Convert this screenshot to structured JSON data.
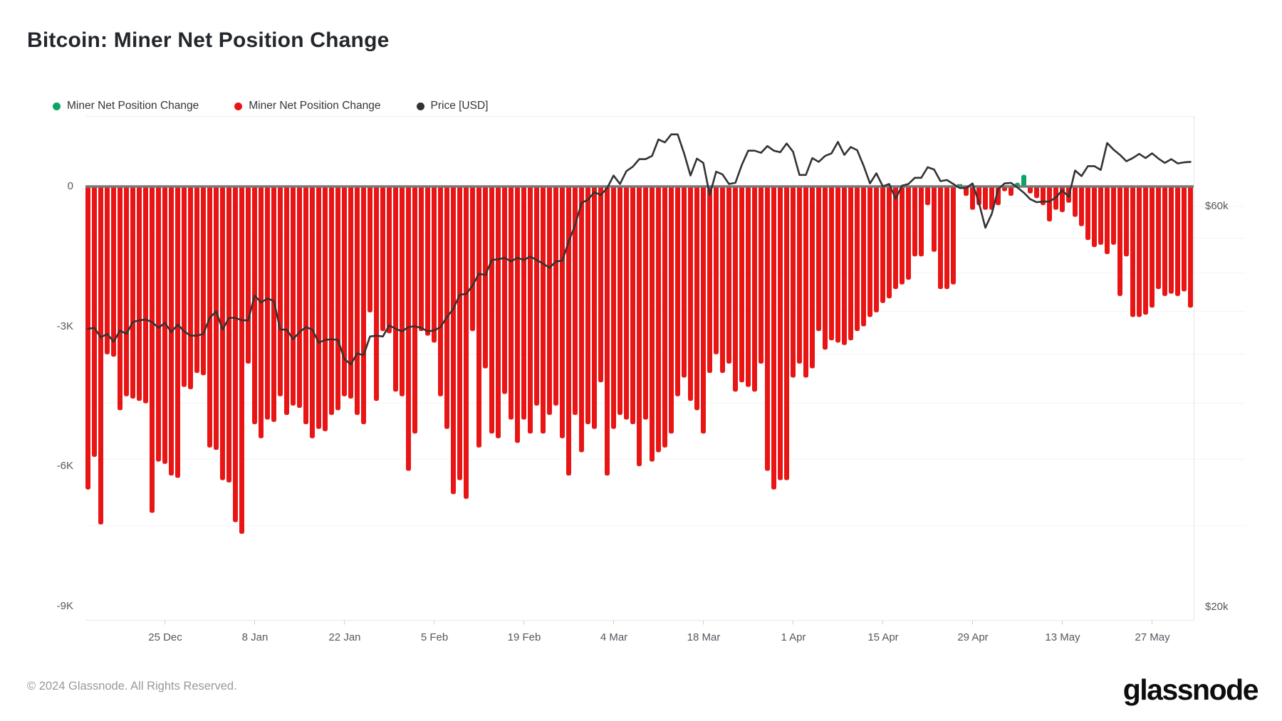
{
  "header": {
    "title": "Bitcoin: Miner Net Position Change"
  },
  "legend": [
    {
      "label": "Miner Net Position Change",
      "color": "#0AA564"
    },
    {
      "label": "Miner Net Position Change",
      "color": "#E91515"
    },
    {
      "label": "Price [USD]",
      "color": "#333333"
    }
  ],
  "axes": {
    "left_ticks": [
      "0",
      "-3K",
      "-6K",
      "-9K"
    ],
    "left_tick_values_k": [
      0,
      -3,
      -6,
      -9
    ],
    "right_ticks": [
      "$60k",
      "$20k"
    ],
    "right_tick_values_usd_k": [
      60,
      20
    ],
    "x_ticks": [
      "25 Dec",
      "8 Jan",
      "22 Jan",
      "5 Feb",
      "19 Feb",
      "4 Mar",
      "18 Mar",
      "1 Apr",
      "15 Apr",
      "29 Apr",
      "13 May",
      "27 May"
    ],
    "x_tick_day_indices": [
      12,
      26,
      40,
      54,
      68,
      82,
      96,
      110,
      124,
      138,
      152,
      166
    ]
  },
  "footer": {
    "copyright": "© 2024 Glassnode. All Rights Reserved.",
    "brand": "glassnode"
  },
  "chart_data": {
    "type": "bar+line",
    "title": "Bitcoin: Miner Net Position Change",
    "cadence": "daily",
    "x_start_date": "2023-12-13",
    "x_end_date": "2024-06-02",
    "x_tick_labels": [
      "25 Dec",
      "8 Jan",
      "22 Jan",
      "5 Feb",
      "19 Feb",
      "4 Mar",
      "18 Mar",
      "1 Apr",
      "15 Apr",
      "29 Apr",
      "13 May",
      "27 May"
    ],
    "x_tick_day_indices": [
      12,
      26,
      40,
      54,
      68,
      82,
      96,
      110,
      124,
      138,
      152,
      166
    ],
    "bar_series_name": "Miner Net Position Change",
    "bar_unit": "K BTC",
    "ylim_k": [
      -9.6,
      0.6
    ],
    "left_axis_ticks_k": [
      0,
      -3,
      -6,
      -9
    ],
    "bar_values_thousands": [
      -6.5,
      -5.8,
      -7.25,
      -3.6,
      -3.65,
      -4.8,
      -4.5,
      -4.55,
      -4.6,
      -4.65,
      -7.0,
      -5.9,
      -5.95,
      -6.2,
      -6.25,
      -4.3,
      -4.35,
      -4.0,
      -4.05,
      -5.6,
      -5.65,
      -6.3,
      -6.35,
      -7.2,
      -7.45,
      -3.8,
      -5.1,
      -5.4,
      -5.0,
      -5.05,
      -4.5,
      -4.9,
      -4.7,
      -4.75,
      -5.1,
      -5.4,
      -5.2,
      -5.25,
      -4.9,
      -4.8,
      -4.5,
      -4.55,
      -4.9,
      -5.1,
      -2.7,
      -4.6,
      -3.1,
      -3.15,
      -4.4,
      -4.5,
      -6.1,
      -5.3,
      -3.1,
      -3.2,
      -3.35,
      -4.5,
      -5.2,
      -6.6,
      -6.3,
      -6.7,
      -3.1,
      -5.6,
      -3.9,
      -5.3,
      -5.4,
      -4.45,
      -5.0,
      -5.5,
      -5.0,
      -5.3,
      -4.7,
      -5.3,
      -4.9,
      -4.7,
      -5.4,
      -6.2,
      -4.9,
      -5.7,
      -5.1,
      -5.2,
      -4.2,
      -6.2,
      -5.2,
      -4.9,
      -5.0,
      -5.1,
      -6.0,
      -5.0,
      -5.9,
      -5.7,
      -5.6,
      -5.3,
      -4.5,
      -4.1,
      -4.6,
      -4.8,
      -5.3,
      -4.0,
      -3.6,
      -4.0,
      -3.8,
      -4.4,
      -4.2,
      -4.3,
      -4.4,
      -3.8,
      -6.1,
      -6.5,
      -6.3,
      -6.3,
      -4.1,
      -3.8,
      -4.1,
      -3.9,
      -3.1,
      -3.5,
      -3.3,
      -3.35,
      -3.4,
      -3.3,
      -3.1,
      -3.0,
      -2.8,
      -2.7,
      -2.5,
      -2.4,
      -2.2,
      -2.1,
      -2.0,
      -1.5,
      -1.5,
      -0.4,
      -1.4,
      -2.2,
      -2.2,
      -2.1,
      0.05,
      -0.2,
      -0.5,
      -0.4,
      -0.5,
      -0.5,
      -0.4,
      -0.1,
      -0.2,
      0.08,
      0.25,
      -0.15,
      -0.25,
      -0.4,
      -0.75,
      -0.5,
      -0.55,
      -0.35,
      -0.65,
      -0.85,
      -1.15,
      -1.3,
      -1.25,
      -1.45,
      -1.25,
      -2.35,
      -1.5,
      -2.8,
      -2.8,
      -2.75,
      -2.6,
      -2.2,
      -2.35,
      -2.3,
      -2.35,
      -2.25,
      -2.6
    ],
    "price_series_name": "Price [USD]",
    "price_axis": {
      "scale": "log",
      "tick_labels": [
        "$60k",
        "$20k"
      ],
      "tick_values_usd": [
        60000,
        20000
      ]
    },
    "price_values_usd_k": [
      42.9,
      43.0,
      41.9,
      42.3,
      41.4,
      42.7,
      42.3,
      43.7,
      43.9,
      44.0,
      43.7,
      43.0,
      43.6,
      42.5,
      43.4,
      42.6,
      42.1,
      42.1,
      42.3,
      44.2,
      45.0,
      42.8,
      44.2,
      44.2,
      43.9,
      43.9,
      47.0,
      46.1,
      46.6,
      46.3,
      42.8,
      42.8,
      41.7,
      42.5,
      43.1,
      42.8,
      41.3,
      41.6,
      41.7,
      41.6,
      39.5,
      38.9,
      40.1,
      39.9,
      42.0,
      42.1,
      42.0,
      43.3,
      42.9,
      42.6,
      43.1,
      43.2,
      43.0,
      42.6,
      42.7,
      43.1,
      44.3,
      45.3,
      47.1,
      47.2,
      48.3,
      49.9,
      49.7,
      51.8,
      51.9,
      52.1,
      51.6,
      52.1,
      51.8,
      52.3,
      51.8,
      51.3,
      50.7,
      51.6,
      51.7,
      54.5,
      57.0,
      60.6,
      61.1,
      62.4,
      61.9,
      63.1,
      65.3,
      63.8,
      66.1,
      66.9,
      68.3,
      68.3,
      68.9,
      72.1,
      71.5,
      73.1,
      73.1,
      69.4,
      65.3,
      68.4,
      67.6,
      61.9,
      66.0,
      65.5,
      63.8,
      64.0,
      67.2,
      69.9,
      69.9,
      69.5,
      70.8,
      69.9,
      69.6,
      71.3,
      69.7,
      65.4,
      65.4,
      68.5,
      67.8,
      68.9,
      69.4,
      71.6,
      69.1,
      70.6,
      70.0,
      67.1,
      63.9,
      65.7,
      63.4,
      63.8,
      61.3,
      63.5,
      63.8,
      64.9,
      64.9,
      66.8,
      66.4,
      64.3,
      64.5,
      63.8,
      63.1,
      63.1,
      63.9,
      60.6,
      56.6,
      58.8,
      62.9,
      63.9,
      64.0,
      63.2,
      62.3,
      61.2,
      60.7,
      60.8,
      60.8,
      61.5,
      62.7,
      61.6,
      66.2,
      65.2,
      67.0,
      67.0,
      66.3,
      71.4,
      70.1,
      69.1,
      67.9,
      68.5,
      69.3,
      68.5,
      69.4,
      68.4,
      67.6,
      68.3,
      67.5,
      67.7,
      67.8
    ],
    "colors": {
      "bar_negative": "#E91515",
      "bar_positive": "#0AA564",
      "price_line": "#333333",
      "zero_line": "#787878",
      "gridline": "#f4f4f4"
    },
    "legend_position": "top-left",
    "grid": "horizontal-faint"
  }
}
